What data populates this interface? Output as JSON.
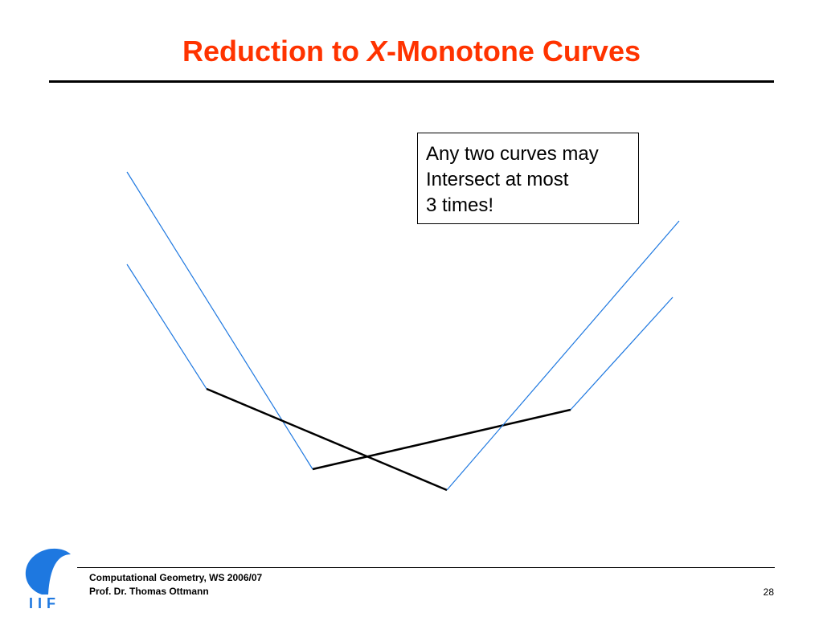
{
  "slide": {
    "title_part1": "Reduction to ",
    "title_italic": "X",
    "title_part2": "-Monotone Curves",
    "note": {
      "line1": "Any two curves may",
      "line2": "Intersect at most",
      "line3": "3 times!"
    },
    "footer": {
      "line1": "Computational Geometry, WS 2006/07",
      "line2": "Prof. Dr. Thomas Ottmann",
      "page_number": "28"
    },
    "logo_text": "IIF"
  },
  "colors": {
    "title": "#ff3300",
    "monotone_curve": "#1e78e0",
    "reduced_segment": "#000000",
    "logo": "#1e78e0"
  }
}
